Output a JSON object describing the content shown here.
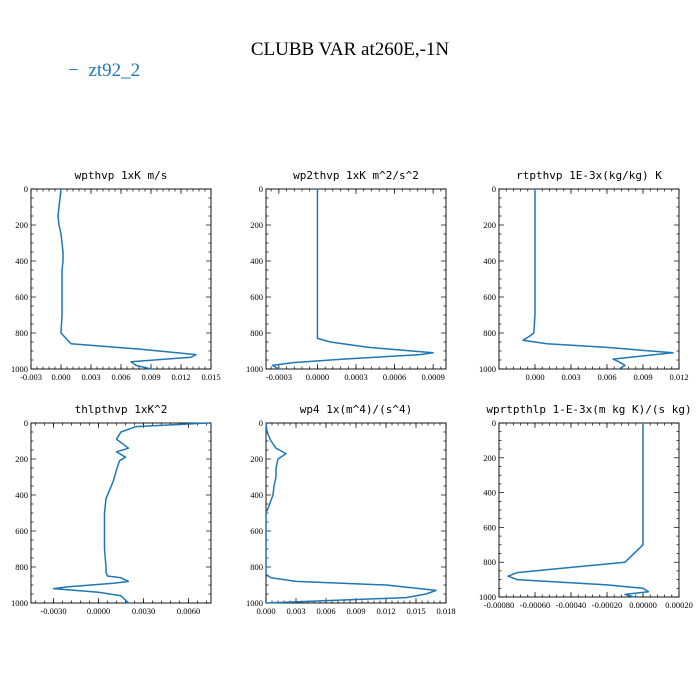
{
  "figure": {
    "title": "CLUBB VAR at260E,-1N",
    "series_color": "#1f77b4",
    "legend": [
      {
        "label": "zt92_2",
        "color": "#1f77b4",
        "symbol": "−"
      }
    ]
  },
  "chart_data": [
    {
      "type": "line",
      "title": "wpthvp  1xK m/s",
      "xlim": [
        -0.003,
        0.015
      ],
      "ylim": [
        1000,
        0
      ],
      "xticks": [
        -0.003,
        0,
        0.003,
        0.006,
        0.009,
        0.012,
        0.015
      ],
      "xtick_labels": [
        "-0.003",
        "0.000",
        "0.003",
        "0.006",
        "0.009",
        "0.012",
        "0.015"
      ],
      "yticks": [
        0,
        200,
        400,
        600,
        800,
        1000
      ],
      "ytick_labels": [
        "0",
        "200",
        "400",
        "600",
        "800",
        "1000"
      ],
      "series": [
        {
          "x": [
            0.0,
            -0.0001,
            -0.0002,
            -0.0003,
            -0.0002,
            0.0,
            0.0001,
            0.0002,
            0.0002,
            0.0001,
            0.0001,
            0.0001,
            0.0001,
            0.0,
            0.001,
            0.008,
            0.0135,
            0.013,
            0.007,
            0.0075,
            0.009
          ],
          "y": [
            0,
            50,
            100,
            150,
            200,
            250,
            300,
            350,
            400,
            450,
            500,
            600,
            700,
            800,
            860,
            890,
            920,
            935,
            960,
            980,
            1000
          ]
        }
      ]
    },
    {
      "type": "line",
      "title": "wp2thvp  1xK m^2/s^2",
      "xlim": [
        -0.0004,
        0.001
      ],
      "ylim": [
        1000,
        0
      ],
      "xticks": [
        -0.0003,
        0,
        0.0003,
        0.0006,
        0.0009
      ],
      "xtick_labels": [
        "-0.0003",
        "0.0000",
        "0.0003",
        "0.0006",
        "0.0009"
      ],
      "yticks": [
        0,
        200,
        400,
        600,
        800,
        1000
      ],
      "ytick_labels": [
        "0",
        "200",
        "400",
        "600",
        "800",
        "1000"
      ],
      "series": [
        {
          "x": [
            0.0,
            0.0,
            0.0,
            0.0,
            0.0,
            0.0,
            0.0,
            0.0,
            0.0,
            0.0,
            0.0001,
            0.0004,
            0.0009,
            0.0008,
            0.0002,
            -0.0002,
            -0.00035,
            -0.0003
          ],
          "y": [
            0,
            100,
            200,
            300,
            400,
            500,
            600,
            700,
            800,
            830,
            850,
            880,
            910,
            920,
            945,
            965,
            980,
            1000
          ]
        }
      ]
    },
    {
      "type": "line",
      "title": "rtpthvp  1E-3x(kg/kg) K",
      "xlim": [
        -0.003,
        0.012
      ],
      "ylim": [
        1000,
        0
      ],
      "xticks": [
        0,
        0.003,
        0.006,
        0.009,
        0.012
      ],
      "xtick_labels": [
        "0.000",
        "0.003",
        "0.006",
        "0.009",
        "0.012"
      ],
      "yticks": [
        0,
        200,
        400,
        600,
        800,
        1000
      ],
      "ytick_labels": [
        "0",
        "200",
        "400",
        "600",
        "800",
        "1000"
      ],
      "series": [
        {
          "x": [
            0.0,
            0.0,
            0.0,
            0.0,
            0.0,
            0.0,
            0.0,
            0.0,
            -0.0001,
            -0.0005,
            -0.001,
            0.001,
            0.006,
            0.0115,
            0.01,
            0.0065,
            0.007,
            0.0075,
            0.007
          ],
          "y": [
            0,
            100,
            200,
            300,
            400,
            500,
            600,
            700,
            800,
            820,
            840,
            860,
            880,
            910,
            920,
            945,
            960,
            980,
            1000
          ]
        }
      ]
    },
    {
      "type": "line",
      "title": "thlpthvp  1xK^2",
      "xlim": [
        -0.0045,
        0.0075
      ],
      "ylim": [
        1000,
        0
      ],
      "xticks": [
        -0.003,
        0,
        0.003,
        0.006
      ],
      "xtick_labels": [
        "-0.0030",
        "0.0000",
        "0.0030",
        "0.0060"
      ],
      "yticks": [
        0,
        200,
        400,
        600,
        800,
        1000
      ],
      "ytick_labels": [
        "0",
        "200",
        "400",
        "600",
        "800",
        "1000"
      ],
      "series": [
        {
          "x": [
            0.0073,
            0.0025,
            0.0015,
            0.0012,
            0.002,
            0.0012,
            0.0018,
            0.0014,
            0.0012,
            0.001,
            0.0007,
            0.0005,
            0.0004,
            0.0004,
            0.0004,
            0.0005,
            0.0005,
            0.0006,
            0.0015,
            0.002,
            0.001,
            -0.002,
            -0.003,
            0.0,
            0.0015,
            0.002
          ],
          "y": [
            0,
            20,
            50,
            90,
            140,
            160,
            190,
            210,
            260,
            320,
            380,
            420,
            500,
            600,
            700,
            800,
            830,
            850,
            860,
            880,
            890,
            910,
            920,
            940,
            960,
            1000
          ]
        }
      ]
    },
    {
      "type": "line",
      "title": "wp4  1x(m^4)/(s^4)",
      "xlim": [
        0,
        0.018
      ],
      "ylim": [
        1000,
        0
      ],
      "xticks": [
        0,
        0.003,
        0.006,
        0.009,
        0.012,
        0.015,
        0.018
      ],
      "xtick_labels": [
        "0.000",
        "0.003",
        "0.006",
        "0.009",
        "0.012",
        "0.015",
        "0.018"
      ],
      "yticks": [
        0,
        200,
        400,
        600,
        800,
        1000
      ],
      "ytick_labels": [
        "0",
        "200",
        "400",
        "600",
        "800",
        "1000"
      ],
      "series": [
        {
          "x": [
            0.0,
            0.0001,
            0.0005,
            0.001,
            0.002,
            0.0012,
            0.001,
            0.001,
            0.0008,
            0.0007,
            0.0003,
            0.0,
            0.0,
            0.0,
            0.0,
            0.0005,
            0.003,
            0.012,
            0.017,
            0.016,
            0.014,
            0.0
          ],
          "y": [
            0,
            50,
            100,
            140,
            170,
            200,
            250,
            300,
            350,
            400,
            460,
            500,
            600,
            700,
            840,
            860,
            880,
            900,
            930,
            950,
            970,
            1000
          ]
        }
      ]
    },
    {
      "type": "line",
      "title": "wprtpthlp  1-E-3x(m kg K)/(s kg)",
      "xlim": [
        -0.0008,
        0.0002
      ],
      "ylim": [
        1000,
        0
      ],
      "xticks": [
        -0.0008,
        -0.0006,
        -0.0004,
        -0.0002,
        0,
        0.0002
      ],
      "xtick_labels": [
        "-0.00080",
        "-0.00060",
        "-0.00040",
        "-0.00020",
        "0.00000",
        "0.00020"
      ],
      "yticks": [
        0,
        200,
        400,
        600,
        800,
        1000
      ],
      "ytick_labels": [
        "0",
        "200",
        "400",
        "600",
        "800",
        "1000"
      ],
      "series": [
        {
          "x": [
            0.0,
            0.0,
            0.0,
            0.0,
            0.0,
            0.0,
            0.0,
            0.0,
            -0.0001,
            -0.0004,
            -0.0007,
            -0.00075,
            -0.0007,
            -0.0002,
            0.0,
            3e-05,
            -0.0001,
            -5e-05
          ],
          "y": [
            0,
            100,
            200,
            300,
            400,
            500,
            600,
            700,
            800,
            830,
            860,
            880,
            900,
            930,
            950,
            970,
            985,
            1000
          ]
        }
      ]
    }
  ]
}
